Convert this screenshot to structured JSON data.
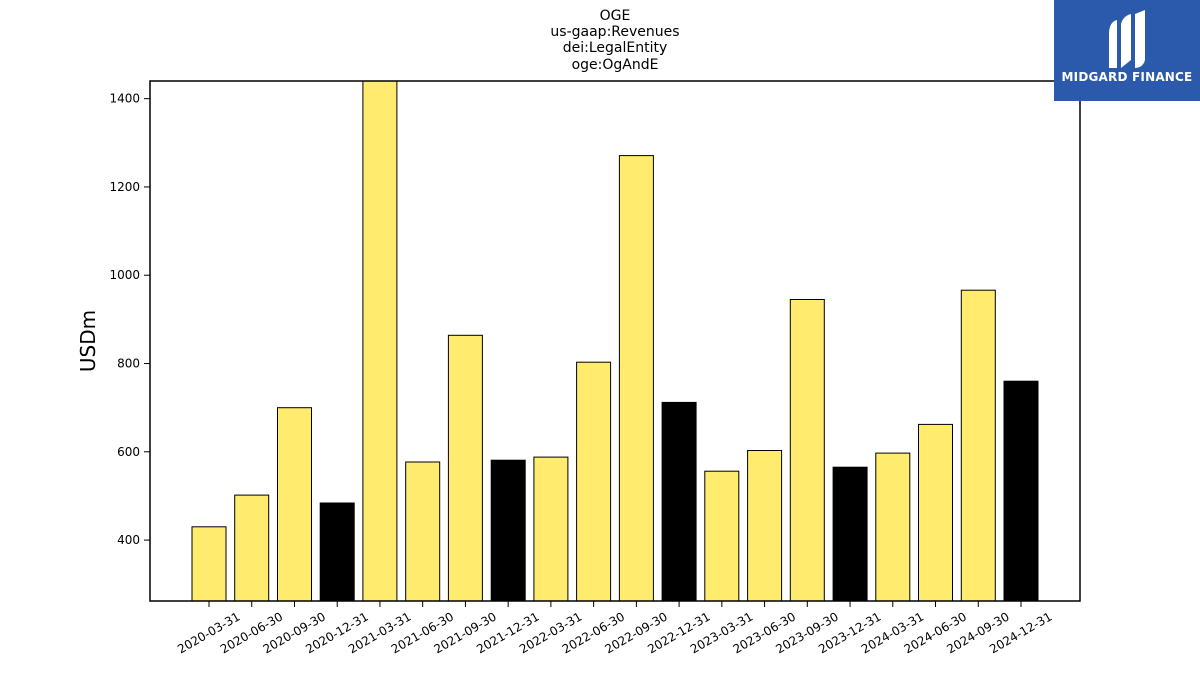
{
  "chart_data": {
    "type": "bar",
    "title_lines": [
      "OGE",
      "us-gaap:Revenues",
      "dei:LegalEntity",
      "oge:OgAndE"
    ],
    "ylabel": "USDm",
    "xlabel": "",
    "ylim": [
      262,
      1440
    ],
    "yticks": [
      400,
      600,
      800,
      1000,
      1200,
      1400
    ],
    "categories": [
      "2020-03-31",
      "2020-06-30",
      "2020-09-30",
      "2020-12-31",
      "2021-03-31",
      "2021-06-30",
      "2021-09-30",
      "2021-12-31",
      "2022-03-31",
      "2022-06-30",
      "2022-09-30",
      "2022-12-31",
      "2023-03-31",
      "2023-06-30",
      "2023-09-30",
      "2023-12-31",
      "2024-03-31",
      "2024-06-30",
      "2024-09-30",
      "2024-12-31"
    ],
    "values": [
      430,
      502,
      700,
      484,
      1440,
      577,
      864,
      581,
      588,
      803,
      1271,
      712,
      556,
      603,
      945,
      565,
      597,
      662,
      966,
      760
    ],
    "bar_colors": [
      "#ffeb6e",
      "#ffeb6e",
      "#ffeb6e",
      "#000000",
      "#ffeb6e",
      "#ffeb6e",
      "#ffeb6e",
      "#000000",
      "#ffeb6e",
      "#ffeb6e",
      "#ffeb6e",
      "#000000",
      "#ffeb6e",
      "#ffeb6e",
      "#ffeb6e",
      "#000000",
      "#ffeb6e",
      "#ffeb6e",
      "#ffeb6e",
      "#000000"
    ],
    "grid": false,
    "legend": "none"
  },
  "logo": {
    "text": "MIDGARD FINANCE",
    "background": "#2b5aad"
  }
}
